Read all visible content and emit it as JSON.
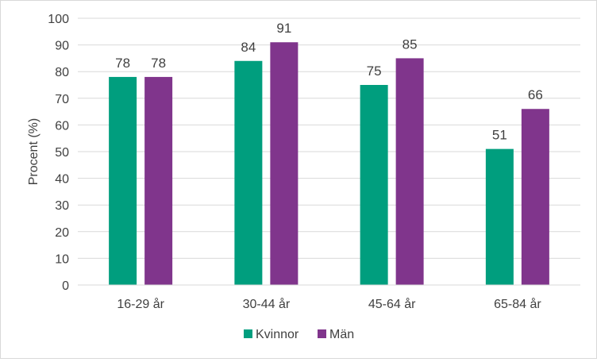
{
  "chart_data": {
    "type": "bar",
    "categories": [
      "16-29 år",
      "30-44 år",
      "45-64 år",
      "65-84 år"
    ],
    "series": [
      {
        "name": "Kvinnor",
        "color": "#009e7e",
        "values": [
          78,
          84,
          75,
          51
        ]
      },
      {
        "name": "Män",
        "color": "#80358c",
        "values": [
          78,
          91,
          85,
          66
        ]
      }
    ],
    "title": "",
    "xlabel": "",
    "ylabel": "Procent (%)",
    "ylim": [
      0,
      100
    ],
    "yticks": [
      0,
      10,
      20,
      30,
      40,
      50,
      60,
      70,
      80,
      90,
      100
    ],
    "grid": true,
    "gridColor": "#d9d9d9",
    "legend": "bottom"
  }
}
